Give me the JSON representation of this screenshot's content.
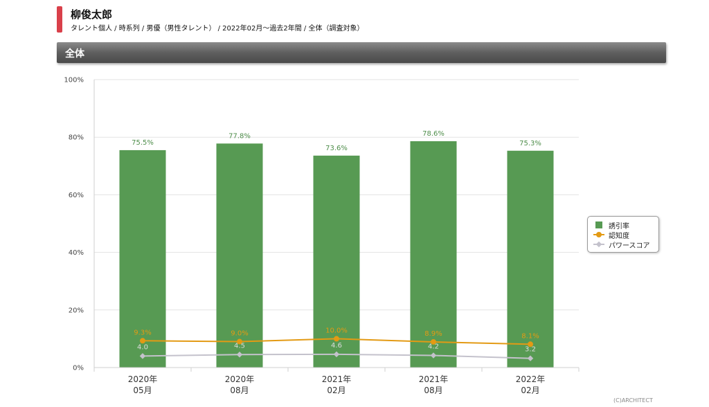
{
  "header": {
    "title": "柳俊太郎",
    "subtitle": "タレント個人 / 時系列 / 男優（男性タレント） / 2022年02月〜過去2年間 / 全体（調査対象）"
  },
  "section": {
    "label": "全体"
  },
  "footer": {
    "copyright": "(C)ARCHITECT"
  },
  "colors": {
    "bar": "#579a53",
    "awareness": "#e39a14",
    "power": "#c4c2cc",
    "grid": "#e3e3e3"
  },
  "chart_data": {
    "type": "bar",
    "categories": [
      [
        "2020年",
        "05月"
      ],
      [
        "2020年",
        "08月"
      ],
      [
        "2021年",
        "02月"
      ],
      [
        "2021年",
        "08月"
      ],
      [
        "2022年",
        "02月"
      ]
    ],
    "ylim": [
      0,
      100
    ],
    "yticks": [
      "0%",
      "20%",
      "40%",
      "60%",
      "80%",
      "100%"
    ],
    "grid": true,
    "legend_position": "right",
    "series": [
      {
        "name": "誘引率",
        "type": "bar",
        "values": [
          75.5,
          77.8,
          73.6,
          78.6,
          75.3
        ],
        "labels": [
          "75.5%",
          "77.8%",
          "73.6%",
          "78.6%",
          "75.3%"
        ]
      },
      {
        "name": "認知度",
        "type": "line",
        "values": [
          9.3,
          9.0,
          10.0,
          8.9,
          8.1
        ],
        "labels": [
          "9.3%",
          "9.0%",
          "10.0%",
          "8.9%",
          "8.1%"
        ]
      },
      {
        "name": "パワースコア",
        "type": "line",
        "values": [
          4.0,
          4.5,
          4.6,
          4.2,
          3.2
        ],
        "labels": [
          "4.0",
          "4.5",
          "4.6",
          "4.2",
          "3.2"
        ]
      }
    ]
  }
}
